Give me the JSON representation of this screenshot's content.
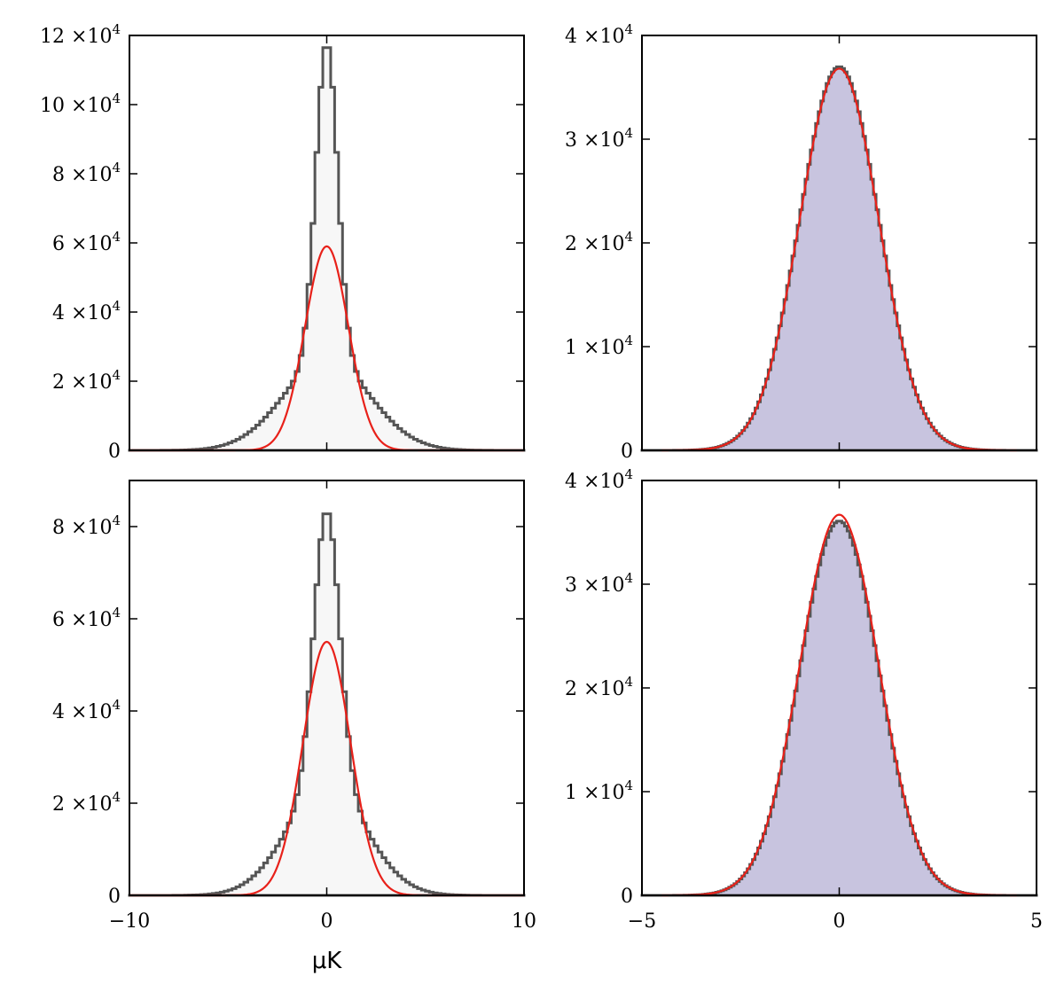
{
  "chart_data": [
    {
      "type": "histogram",
      "panel": "top-left",
      "xlim": [
        -10,
        10
      ],
      "ylim": [
        0,
        120000
      ],
      "yticks": [
        {
          "mant": "0",
          "exp": ""
        },
        {
          "mant": "2",
          "exp": "4"
        },
        {
          "mant": "4",
          "exp": "4"
        },
        {
          "mant": "6",
          "exp": "4"
        },
        {
          "mant": "8",
          "exp": "4"
        },
        {
          "mant": "10",
          "exp": "4"
        },
        {
          "mant": "12",
          "exp": "4"
        }
      ],
      "ytick_values": [
        0,
        20000,
        40000,
        60000,
        80000,
        100000,
        120000
      ],
      "xticks": [],
      "xtick_values": [
        -10,
        0,
        10
      ],
      "hist_color": "#f7f7f7",
      "hist_edge": "#555555",
      "fit_color": "#e8211a",
      "hist": {
        "bins": 100,
        "range": [
          -10,
          10
        ],
        "peak": 118000,
        "core_sigma": 0.55,
        "core_weight": 0.78,
        "wing_sigma": 2.2
      },
      "fit": {
        "mu": 0,
        "sigma": 1.1,
        "amp": 59000,
        "range": [
          -10,
          10
        ]
      },
      "xlabel": ""
    },
    {
      "type": "histogram",
      "panel": "top-right",
      "xlim": [
        -5,
        5
      ],
      "ylim": [
        0,
        40000
      ],
      "yticks": [
        {
          "mant": "0",
          "exp": ""
        },
        {
          "mant": "1",
          "exp": "4"
        },
        {
          "mant": "2",
          "exp": "4"
        },
        {
          "mant": "3",
          "exp": "4"
        },
        {
          "mant": "4",
          "exp": "4"
        }
      ],
      "ytick_values": [
        0,
        10000,
        20000,
        30000,
        40000
      ],
      "xticks": [],
      "xtick_values": [
        -5,
        0,
        5
      ],
      "hist_color": "#c8c4df",
      "hist_edge": "#555555",
      "fit_color": "#e8211a",
      "hist": {
        "bins": 150,
        "range": [
          -5,
          5
        ],
        "peak": 37000,
        "core_sigma": 1.0,
        "core_weight": 1.0,
        "wing_sigma": 1.0
      },
      "fit": {
        "mu": 0,
        "sigma": 1.0,
        "amp": 36800,
        "range": [
          -4.5,
          4.5
        ]
      },
      "xlabel": ""
    },
    {
      "type": "histogram",
      "panel": "bottom-left",
      "xlim": [
        -10,
        10
      ],
      "ylim": [
        0,
        90000
      ],
      "yticks": [
        {
          "mant": "0",
          "exp": ""
        },
        {
          "mant": "2",
          "exp": "4"
        },
        {
          "mant": "4",
          "exp": "4"
        },
        {
          "mant": "6",
          "exp": "4"
        },
        {
          "mant": "8",
          "exp": "4"
        }
      ],
      "ytick_values": [
        0,
        20000,
        40000,
        60000,
        80000
      ],
      "xticks": [
        "−10",
        "0",
        "10"
      ],
      "xtick_values": [
        -10,
        0,
        10
      ],
      "hist_color": "#f7f7f7",
      "hist_edge": "#555555",
      "fit_color": "#e8211a",
      "hist": {
        "bins": 100,
        "range": [
          -10,
          10
        ],
        "peak": 83500,
        "core_sigma": 0.65,
        "core_weight": 0.72,
        "wing_sigma": 2.0
      },
      "fit": {
        "mu": 0,
        "sigma": 1.2,
        "amp": 55000,
        "range": [
          -10,
          10
        ]
      },
      "xlabel": "μK"
    },
    {
      "type": "histogram",
      "panel": "bottom-right",
      "xlim": [
        -5,
        5
      ],
      "ylim": [
        0,
        40000
      ],
      "yticks": [
        {
          "mant": "0",
          "exp": ""
        },
        {
          "mant": "1",
          "exp": "4"
        },
        {
          "mant": "2",
          "exp": "4"
        },
        {
          "mant": "3",
          "exp": "4"
        },
        {
          "mant": "4",
          "exp": "4"
        }
      ],
      "ytick_values": [
        0,
        10000,
        20000,
        30000,
        40000
      ],
      "xticks": [
        "−5",
        "0",
        "5"
      ],
      "xtick_values": [
        -5,
        0,
        5
      ],
      "hist_color": "#c8c4df",
      "hist_edge": "#555555",
      "fit_color": "#e8211a",
      "hist": {
        "bins": 150,
        "range": [
          -5,
          5
        ],
        "peak": 36100,
        "core_sigma": 1.0,
        "core_weight": 1.0,
        "wing_sigma": 1.0
      },
      "fit": {
        "mu": 0,
        "sigma": 1.0,
        "amp": 36700,
        "range": [
          -4.5,
          4.5
        ]
      },
      "xlabel": ""
    }
  ]
}
